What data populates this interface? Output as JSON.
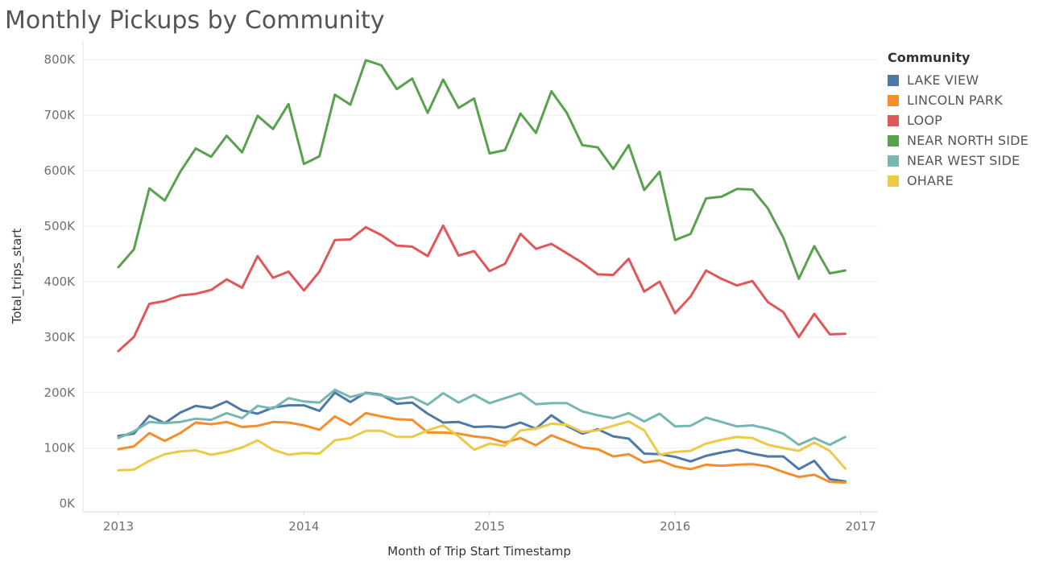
{
  "chart_data": {
    "type": "line",
    "title": "Monthly Pickups by Community",
    "xlabel": "Month of Trip Start Timestamp",
    "ylabel": "Total_trips_start",
    "x_start": "2013-01",
    "x_tick_labels": [
      "2013",
      "2014",
      "2015",
      "2016",
      "2017"
    ],
    "y_ticks": [
      0,
      100000,
      200000,
      300000,
      400000,
      500000,
      600000,
      700000,
      800000
    ],
    "y_tick_labels": [
      "0K",
      "100K",
      "200K",
      "300K",
      "400K",
      "500K",
      "600K",
      "700K",
      "800K"
    ],
    "ylim": [
      -15000,
      835000
    ],
    "legend_title": "Community",
    "legend_position": "right",
    "grid": true,
    "series": [
      {
        "name": "LAKE VIEW",
        "color": "#4e79a7",
        "values": [
          122000,
          126000,
          158000,
          145000,
          164000,
          176000,
          172000,
          184000,
          168000,
          162000,
          173000,
          177000,
          177000,
          167000,
          200000,
          183000,
          200000,
          196000,
          180000,
          182000,
          162000,
          146000,
          147000,
          138000,
          139000,
          137000,
          146000,
          135000,
          159000,
          140000,
          126000,
          134000,
          121000,
          117000,
          90000,
          89000,
          84000,
          76000,
          86000,
          92000,
          97000,
          90000,
          85000,
          85000,
          62000,
          77000,
          44000,
          40000
        ]
      },
      {
        "name": "LINCOLN PARK",
        "color": "#f28e2b",
        "values": [
          98000,
          103000,
          127000,
          113000,
          127000,
          146000,
          143000,
          147000,
          138000,
          140000,
          147000,
          146000,
          141000,
          133000,
          157000,
          142000,
          163000,
          157000,
          152000,
          151000,
          128000,
          128000,
          126000,
          121000,
          118000,
          110000,
          118000,
          105000,
          123000,
          112000,
          101000,
          98000,
          85000,
          89000,
          74000,
          78000,
          67000,
          62000,
          70000,
          68000,
          70000,
          71000,
          67000,
          57000,
          48000,
          52000,
          39000,
          38000
        ]
      },
      {
        "name": "LOOP",
        "color": "#e15759",
        "values": [
          275000,
          300000,
          360000,
          365000,
          375000,
          378000,
          385000,
          404000,
          389000,
          446000,
          407000,
          418000,
          384000,
          418000,
          475000,
          476000,
          498000,
          484000,
          465000,
          463000,
          446000,
          501000,
          447000,
          455000,
          419000,
          432000,
          486000,
          459000,
          468000,
          451000,
          434000,
          413000,
          412000,
          441000,
          382000,
          400000,
          343000,
          373000,
          420000,
          405000,
          393000,
          401000,
          363000,
          345000,
          300000,
          342000,
          305000,
          306000
        ]
      },
      {
        "name": "NEAR NORTH SIDE",
        "color": "#59a14f",
        "values": [
          426000,
          458000,
          568000,
          546000,
          598000,
          640000,
          625000,
          663000,
          633000,
          699000,
          675000,
          720000,
          612000,
          626000,
          737000,
          719000,
          799000,
          790000,
          747000,
          766000,
          704000,
          764000,
          713000,
          730000,
          631000,
          637000,
          703000,
          668000,
          743000,
          704000,
          646000,
          642000,
          603000,
          646000,
          565000,
          598000,
          475000,
          486000,
          550000,
          553000,
          567000,
          566000,
          532000,
          479000,
          405000,
          464000,
          415000,
          420000
        ]
      },
      {
        "name": "NEAR WEST SIDE",
        "color": "#76b7b2",
        "values": [
          118000,
          130000,
          147000,
          145000,
          147000,
          153000,
          151000,
          163000,
          154000,
          176000,
          171000,
          190000,
          184000,
          182000,
          205000,
          192000,
          199000,
          195000,
          188000,
          192000,
          178000,
          199000,
          182000,
          196000,
          181000,
          190000,
          199000,
          179000,
          181000,
          181000,
          166000,
          159000,
          154000,
          163000,
          148000,
          162000,
          139000,
          140000,
          155000,
          147000,
          139000,
          141000,
          135000,
          126000,
          106000,
          118000,
          106000,
          120000
        ]
      },
      {
        "name": "OHARE",
        "color": "#edc948",
        "values": [
          60000,
          61000,
          77000,
          89000,
          94000,
          96000,
          88000,
          93000,
          101000,
          114000,
          97000,
          88000,
          91000,
          90000,
          114000,
          118000,
          131000,
          131000,
          120000,
          120000,
          132000,
          141000,
          121000,
          97000,
          108000,
          104000,
          132000,
          135000,
          144000,
          142000,
          129000,
          132000,
          140000,
          148000,
          132000,
          88000,
          93000,
          95000,
          108000,
          115000,
          120000,
          118000,
          106000,
          100000,
          95000,
          110000,
          95000,
          63000
        ]
      }
    ]
  }
}
